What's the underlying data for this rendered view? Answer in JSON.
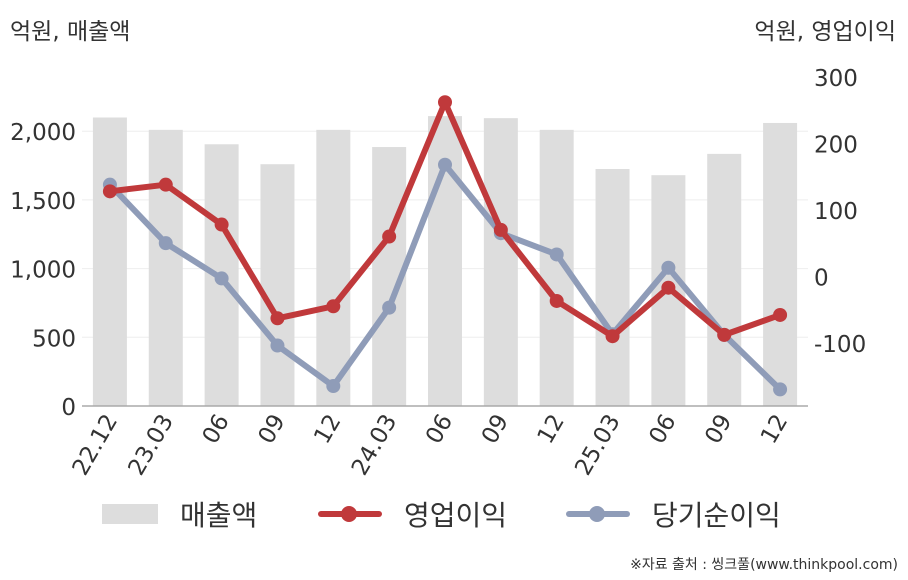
{
  "units": {
    "left": "억원, 매출액",
    "right": "억원, 영업이익"
  },
  "source": "※자료 출처 : 씽크풀(www.thinkpool.com)",
  "colors": {
    "bar": "#dddddd",
    "operating_profit": "#c0393b",
    "net_income": "#8f9cb8",
    "axis": "#aaaaaa",
    "grid": "#eeeeee"
  },
  "legend": {
    "bar": "매출액",
    "op": "영업이익",
    "net": "당기순이익"
  },
  "chart_data": {
    "type": "bar+line",
    "categories": [
      "22.12",
      "23.03",
      "06",
      "09",
      "12",
      "24.03",
      "06",
      "09",
      "12",
      "25.03",
      "06",
      "09",
      "12"
    ],
    "series": [
      {
        "name": "매출액",
        "type": "bar",
        "axis": "left",
        "values": [
          2100,
          2010,
          1905,
          1760,
          2010,
          1885,
          2110,
          2095,
          2010,
          1725,
          1680,
          1835,
          2060
        ]
      },
      {
        "name": "영업이익",
        "type": "line",
        "axis": "right",
        "values": [
          128,
          138,
          78,
          -63,
          -45,
          60,
          262,
          70,
          -37,
          -90,
          -17,
          -88,
          -58
        ]
      },
      {
        "name": "당기순이익",
        "type": "line",
        "axis": "right",
        "values": [
          138,
          50,
          -3,
          -104,
          -165,
          -47,
          168,
          65,
          33,
          -87,
          13,
          -88,
          -170
        ]
      }
    ],
    "y_left": {
      "ylim": [
        0,
        2300
      ],
      "ticks": [
        0,
        500,
        1000,
        1500,
        2000
      ],
      "tick_labels": [
        "0",
        "500",
        "1,000",
        "1,500",
        "2,000"
      ]
    },
    "y_right": {
      "ylim": [
        -195,
        300
      ],
      "ticks": [
        -100,
        0,
        100,
        200,
        300
      ],
      "tick_labels": [
        "-100",
        "0",
        "100",
        "200",
        "300"
      ]
    },
    "grid": true,
    "legend_position": "bottom"
  }
}
